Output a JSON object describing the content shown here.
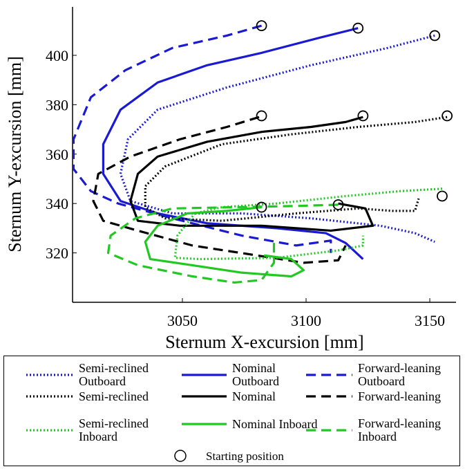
{
  "chart_data": {
    "type": "line",
    "x_label": "Sternum X-excursion [mm]",
    "y_label": "Sternum Y-excursion [mm]",
    "xlim": [
      3005.6,
      3160.6
    ],
    "xticks": [
      3050,
      3100,
      3150
    ],
    "ylim": [
      300,
      419.6
    ],
    "yticks": [
      320,
      340,
      360,
      380,
      400
    ],
    "series": [
      {
        "name": "Semi-reclined Outboard",
        "color": "#1a1ad2",
        "dash": "dotted",
        "x": [
          3152,
          3133,
          3102,
          3068,
          3040,
          3028,
          3025,
          3029,
          3046,
          3074,
          3102,
          3130,
          3144,
          3152
        ],
        "values": [
          408,
          403,
          396,
          387,
          378,
          366,
          352,
          341,
          336,
          336,
          334,
          331,
          328,
          324.5
        ]
      },
      {
        "name": "Nominal Outboard",
        "color": "#1a1ad2",
        "dash": "solid",
        "x": [
          3121,
          3105,
          3082,
          3060,
          3040,
          3025,
          3018,
          3018,
          3025,
          3040,
          3060,
          3088,
          3108,
          3116,
          3123
        ],
        "values": [
          411,
          407,
          401,
          396,
          389,
          378,
          364,
          352,
          341,
          336,
          332,
          330,
          328,
          324,
          317.5
        ]
      },
      {
        "name": "Forward-leaning Outboard",
        "color": "#1a1ad2",
        "dash": "dashed",
        "x": [
          3082,
          3068,
          3046,
          3027,
          3013,
          3006,
          3006,
          3013,
          3024,
          3046,
          3074,
          3096,
          3110,
          3110
        ],
        "values": [
          412,
          408,
          403,
          394,
          383,
          366,
          354,
          345,
          340,
          334,
          327,
          323,
          325,
          320
        ]
      },
      {
        "name": "Semi-reclined",
        "color": "#000000",
        "dash": "dotted",
        "x": [
          3157,
          3144,
          3121,
          3094,
          3066,
          3043,
          3035,
          3035,
          3043,
          3066,
          3096,
          3121,
          3135,
          3144,
          3145.5
        ],
        "values": [
          375,
          373,
          371,
          368,
          364,
          355,
          347,
          338.5,
          334,
          333,
          336,
          338,
          337,
          337,
          342
        ]
      },
      {
        "name": "Nominal",
        "color": "#000000",
        "dash": "solid",
        "x": [
          3123,
          3116,
          3102,
          3082,
          3060,
          3040,
          3032,
          3029,
          3032,
          3049,
          3082,
          3110,
          3127,
          3124,
          3113
        ],
        "values": [
          375,
          373,
          371,
          369,
          365,
          359,
          352,
          341,
          333,
          331,
          331,
          329,
          331,
          338,
          340
        ]
      },
      {
        "name": "Forward-leaning",
        "color": "#000000",
        "dash": "dashed",
        "x": [
          3081,
          3068,
          3049,
          3029,
          3016,
          3014,
          3018,
          3032,
          3054,
          3080,
          3099,
          3113,
          3116
        ],
        "values": [
          375,
          371,
          366,
          359,
          352,
          341,
          333,
          329,
          323,
          319,
          316,
          317,
          323
        ]
      },
      {
        "name": "Semi-reclined Inboard",
        "color": "#22c822",
        "dash": "dotted",
        "x": [
          3155,
          3138,
          3116,
          3088,
          3066,
          3055,
          3048,
          3047,
          3057,
          3088,
          3113,
          3123,
          3123
        ],
        "values": [
          346,
          345,
          343,
          340,
          338.5,
          336,
          327,
          318,
          317.5,
          318,
          321,
          323,
          327
        ]
      },
      {
        "name": "Nominal Inboard",
        "color": "#22c822",
        "dash": "solid",
        "x": [
          3082,
          3068,
          3052,
          3040,
          3035,
          3037,
          3054,
          3074,
          3094,
          3099,
          3094,
          3083
        ],
        "values": [
          338.5,
          337,
          336,
          331,
          324.5,
          317.5,
          315,
          312,
          310.5,
          313,
          317.5,
          319
        ]
      },
      {
        "name": "Forward-leaning Inboard",
        "color": "#22c822",
        "dash": "dashed",
        "x": [
          3113,
          3096,
          3071,
          3046,
          3031,
          3021,
          3020,
          3032,
          3054,
          3071,
          3082,
          3087,
          3087
        ],
        "values": [
          339.5,
          339,
          338.5,
          338,
          334,
          327,
          320,
          315,
          310.5,
          308,
          309,
          316,
          324.5
        ]
      },
      {
        "name": "Starting position",
        "color": "#000000",
        "marker": "circle",
        "x": [
          3082,
          3121,
          3152,
          3082,
          3123,
          3157,
          3082,
          3113,
          3155
        ],
        "values": [
          412,
          411,
          408,
          375.5,
          375.5,
          375.5,
          338.5,
          339.5,
          343
        ]
      }
    ]
  }
}
